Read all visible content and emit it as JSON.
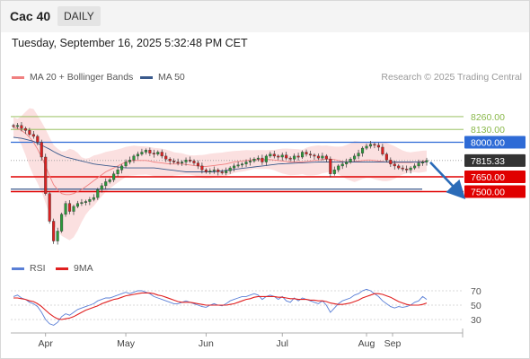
{
  "header": {
    "symbol": "Cac 40",
    "period": "DAILY",
    "datetime": "Tuesday, September 16, 2025 5:32:48 PM CET"
  },
  "legend": {
    "bollinger_label": "MA 20 + Bollinger Bands",
    "ma50_label": "MA 50",
    "research": "Research © 2025 Trading Central",
    "rsi_label": "RSI",
    "rsi_ma_label": "9MA"
  },
  "colors": {
    "bollinger": "#f08080",
    "ma50": "#3a5a8c",
    "rsi": "#5a7fd6",
    "rsi_ma": "#e02020",
    "resistance": "#2e6bd6",
    "support": "#e00000",
    "target_green": "#8ab84a",
    "current": "#333333"
  },
  "chart_data": [
    {
      "type": "candlestick",
      "title": "",
      "x_tick_labels": [
        "Apr",
        "May",
        "Jun",
        "Jul",
        "Aug",
        "Sep"
      ],
      "price_levels": [
        {
          "value": "8260.00",
          "kind": "target",
          "color": "#8ab84a"
        },
        {
          "value": "8130.00",
          "kind": "target",
          "color": "#8ab84a"
        },
        {
          "value": "8000.00",
          "kind": "resistance",
          "color": "#2e6bd6"
        },
        {
          "value": "7815.33",
          "kind": "current",
          "color": "#333333"
        },
        {
          "value": "7650.00",
          "kind": "pivot",
          "color": "#e00000"
        },
        {
          "value": "7500.00",
          "kind": "support",
          "color": "#e00000"
        }
      ],
      "ylim": [
        6850,
        8350
      ],
      "close": [
        8160,
        8170,
        8140,
        8120,
        8080,
        8060,
        8000,
        7850,
        7480,
        7200,
        7000,
        7100,
        7270,
        7380,
        7300,
        7350,
        7380,
        7390,
        7400,
        7420,
        7440,
        7520,
        7560,
        7600,
        7620,
        7680,
        7720,
        7760,
        7800,
        7820,
        7860,
        7880,
        7900,
        7920,
        7890,
        7880,
        7900,
        7860,
        7830,
        7810,
        7800,
        7790,
        7800,
        7820,
        7810,
        7790,
        7760,
        7720,
        7700,
        7710,
        7720,
        7700,
        7690,
        7710,
        7740,
        7760,
        7770,
        7780,
        7800,
        7810,
        7830,
        7840,
        7800,
        7860,
        7880,
        7860,
        7850,
        7870,
        7840,
        7830,
        7860,
        7850,
        7900,
        7880,
        7870,
        7860,
        7840,
        7860,
        7830,
        7680,
        7720,
        7760,
        7780,
        7800,
        7830,
        7860,
        7890,
        7940,
        7960,
        7980,
        7970,
        7950,
        7880,
        7820,
        7780,
        7760,
        7740,
        7730,
        7720,
        7740,
        7760,
        7790,
        7800,
        7816
      ],
      "ma20_series": [
        8150,
        8140,
        8120,
        8090,
        8050,
        8000,
        7930,
        7850,
        7760,
        7660,
        7570,
        7520,
        7480,
        7470,
        7470,
        7480,
        7500,
        7520,
        7550,
        7580,
        7610,
        7640,
        7670,
        7700,
        7720,
        7740,
        7760,
        7780,
        7800,
        7810,
        7815,
        7815,
        7815,
        7815,
        7810,
        7800,
        7795,
        7790,
        7785,
        7780,
        7780,
        7780,
        7780,
        7775,
        7770,
        7765,
        7760,
        7755,
        7755,
        7760,
        7765,
        7770,
        7775,
        7780,
        7790,
        7800,
        7805,
        7810,
        7815,
        7820,
        7825,
        7825,
        7825,
        7825,
        7825,
        7820,
        7815,
        7810,
        7805,
        7800,
        7800,
        7800,
        7800,
        7805,
        7810,
        7815,
        7820,
        7825,
        7830,
        7830,
        7825,
        7815,
        7805,
        7800,
        7800,
        7805,
        7810,
        7815,
        7820,
        7820,
        7815,
        7810,
        7805,
        7800,
        7795,
        7795,
        7795,
        7795,
        7795,
        7795,
        7800,
        7800,
        7805,
        7810
      ],
      "ma50_series": [
        8050,
        8045,
        8040,
        8030,
        8020,
        8010,
        7990,
        7970,
        7950,
        7930,
        7905,
        7885,
        7865,
        7850,
        7840,
        7830,
        7820,
        7810,
        7800,
        7790,
        7780,
        7775,
        7770,
        7765,
        7760,
        7755,
        7750,
        7745,
        7740,
        7740,
        7740,
        7740,
        7740,
        7740,
        7740,
        7740,
        7735,
        7730,
        7725,
        7720,
        7715,
        7710,
        7705,
        7700,
        7700,
        7700,
        7700,
        7700,
        7700,
        7700,
        7700,
        7705,
        7710,
        7715,
        7720,
        7725,
        7730,
        7735,
        7740,
        7745,
        7750,
        7755,
        7760,
        7765,
        7770,
        7775,
        7780,
        7782,
        7784,
        7786,
        7788,
        7790,
        7792,
        7794,
        7796,
        7798,
        7800,
        7800,
        7800,
        7800,
        7800,
        7800,
        7800,
        7800,
        7800,
        7800,
        7800,
        7800,
        7800,
        7800,
        7800,
        7800,
        7800,
        7800,
        7800,
        7800,
        7800,
        7800,
        7800,
        7800,
        7800,
        7800,
        7800,
        7800
      ],
      "projection": {
        "from": 7815.33,
        "to": 7500.0
      }
    },
    {
      "type": "line",
      "title": "",
      "series_names": [
        "RSI",
        "9MA"
      ],
      "y_ticks": [
        70,
        50,
        30
      ],
      "ylim": [
        20,
        80
      ],
      "rsi": [
        62,
        64,
        60,
        58,
        54,
        52,
        48,
        40,
        30,
        24,
        22,
        26,
        34,
        38,
        36,
        40,
        44,
        46,
        48,
        50,
        52,
        56,
        58,
        60,
        60,
        62,
        64,
        66,
        68,
        66,
        68,
        70,
        70,
        68,
        66,
        62,
        60,
        58,
        56,
        54,
        52,
        52,
        54,
        56,
        54,
        52,
        50,
        48,
        47,
        50,
        52,
        50,
        49,
        52,
        56,
        58,
        60,
        62,
        62,
        64,
        66,
        64,
        58,
        62,
        64,
        62,
        58,
        62,
        56,
        54,
        60,
        56,
        60,
        58,
        56,
        54,
        52,
        56,
        50,
        40,
        46,
        52,
        56,
        58,
        60,
        64,
        66,
        70,
        72,
        70,
        66,
        62,
        56,
        52,
        48,
        46,
        48,
        47,
        48,
        50,
        54,
        56,
        62,
        58
      ],
      "rsi_ma": [
        60,
        60,
        59,
        58,
        56,
        55,
        52,
        48,
        43,
        38,
        34,
        31,
        30,
        31,
        32,
        34,
        37,
        40,
        43,
        45,
        47,
        49,
        52,
        54,
        56,
        58,
        59,
        61,
        63,
        64,
        65,
        66,
        67,
        67,
        67,
        66,
        64,
        63,
        61,
        59,
        57,
        55,
        54,
        54,
        54,
        53,
        52,
        51,
        50,
        50,
        50,
        50,
        50,
        50,
        51,
        52,
        54,
        56,
        58,
        59,
        61,
        62,
        62,
        62,
        62,
        62,
        61,
        61,
        60,
        59,
        59,
        58,
        58,
        58,
        57,
        57,
        56,
        56,
        55,
        53,
        52,
        51,
        51,
        52,
        53,
        55,
        57,
        60,
        62,
        64,
        66,
        66,
        65,
        63,
        61,
        58,
        55,
        53,
        51,
        50,
        50,
        50,
        51,
        53
      ]
    }
  ]
}
